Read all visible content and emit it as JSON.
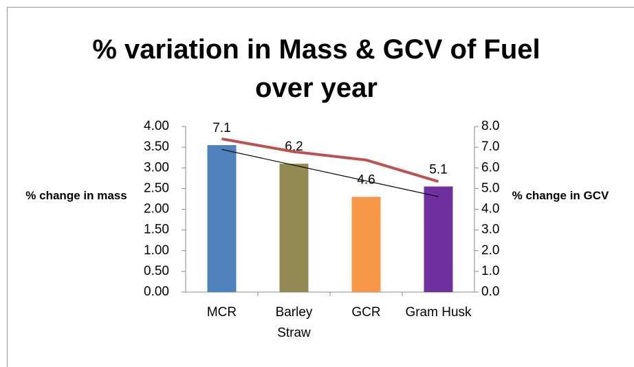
{
  "chart_data": {
    "type": "bar",
    "title": "% variation in Mass & GCV of Fuel over year",
    "ylabel": "% change in mass",
    "y2label": "% change in GCV",
    "categories": [
      "MCR",
      "Barley Straw",
      "GCR",
      "Gram Husk"
    ],
    "series": [
      {
        "type": "bar",
        "axis": "y2",
        "colors": [
          "#4f81bd",
          "#948a54",
          "#f79646",
          "#7030a0"
        ],
        "values": [
          7.1,
          6.2,
          4.6,
          5.1
        ],
        "trendline": true,
        "trendline_color": "#000000"
      },
      {
        "type": "line",
        "axis": "y",
        "color": "#c0504d",
        "values": [
          3.7,
          3.39,
          3.19,
          2.67
        ]
      }
    ],
    "ylim": [
      0,
      4
    ],
    "yticks": [
      {
        "value": 0,
        "label": "0.00"
      },
      {
        "value": 0.5,
        "label": "0.50"
      },
      {
        "value": 1,
        "label": "1.00"
      },
      {
        "value": 1.5,
        "label": "1.50"
      },
      {
        "value": 2,
        "label": "2.00"
      },
      {
        "value": 2.5,
        "label": "2.50"
      },
      {
        "value": 3,
        "label": "3.00"
      },
      {
        "value": 3.5,
        "label": "3.50"
      },
      {
        "value": 4,
        "label": "4.00"
      }
    ],
    "y2lim": [
      0,
      8
    ],
    "y2ticks": [
      {
        "value": 0,
        "label": "0.0"
      },
      {
        "value": 1,
        "label": "1.0"
      },
      {
        "value": 2,
        "label": "2.0"
      },
      {
        "value": 3,
        "label": "3.0"
      },
      {
        "value": 4,
        "label": "4.0"
      },
      {
        "value": 5,
        "label": "5.0"
      },
      {
        "value": 6,
        "label": "6.0"
      },
      {
        "value": 7,
        "label": "7.0"
      },
      {
        "value": 8,
        "label": "8.0"
      }
    ],
    "grid": false
  }
}
